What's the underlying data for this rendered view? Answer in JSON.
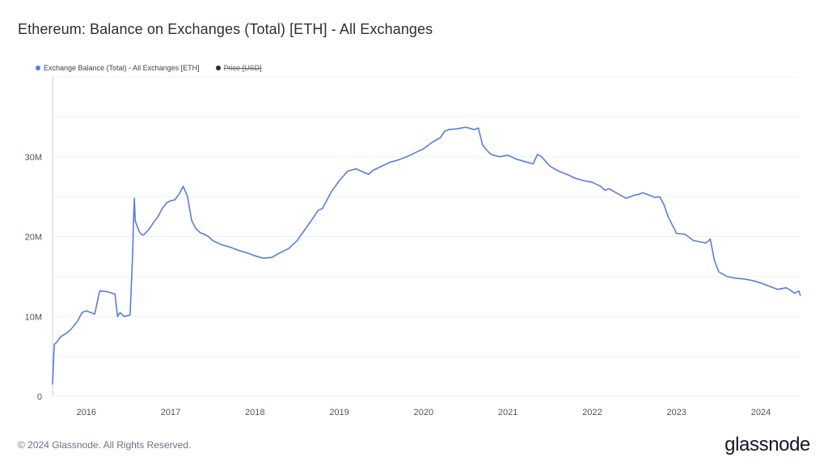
{
  "header": {
    "title": "Ethereum: Balance on Exchanges (Total) [ETH] - All Exchanges"
  },
  "legend": {
    "items": [
      {
        "label": "Exchange Balance (Total) - All Exchanges [ETH]",
        "color": "#5b7be0",
        "struck": false
      },
      {
        "label": "Price [USD]",
        "color": "#2b2b2b",
        "struck": true
      }
    ]
  },
  "footer": {
    "copyright": "© 2024 Glassnode. All Rights Reserved.",
    "brand": "glassnode"
  },
  "chart_data": {
    "type": "line",
    "xlabel": "",
    "ylabel": "",
    "x_ticks": [
      "2016",
      "2017",
      "2018",
      "2019",
      "2020",
      "2021",
      "2022",
      "2023",
      "2024"
    ],
    "y_ticks": [
      0,
      10000000,
      20000000,
      30000000
    ],
    "y_tick_labels": [
      "0",
      "10M",
      "20M",
      "30M"
    ],
    "xlim": [
      2015.6,
      2024.47
    ],
    "ylim": [
      0,
      40000000
    ],
    "grid": true,
    "legend_position": "top-left",
    "series": [
      {
        "name": "Exchange Balance (Total) - All Exchanges [ETH]",
        "color": "#5b7be0",
        "x": [
          2015.6,
          2015.62,
          2015.65,
          2015.7,
          2015.75,
          2015.8,
          2015.85,
          2015.9,
          2015.95,
          2016.0,
          2016.1,
          2016.15,
          2016.16,
          2016.25,
          2016.34,
          2016.37,
          2016.4,
          2016.45,
          2016.52,
          2016.55,
          2016.56,
          2016.57,
          2016.58,
          2016.62,
          2016.65,
          2016.68,
          2016.75,
          2016.8,
          2016.85,
          2016.9,
          2016.95,
          2017.0,
          2017.05,
          2017.1,
          2017.15,
          2017.2,
          2017.25,
          2017.3,
          2017.35,
          2017.4,
          2017.45,
          2017.5,
          2017.6,
          2017.7,
          2017.8,
          2017.9,
          2018.0,
          2018.1,
          2018.2,
          2018.3,
          2018.4,
          2018.5,
          2018.6,
          2018.7,
          2018.75,
          2018.8,
          2018.9,
          2019.0,
          2019.1,
          2019.2,
          2019.3,
          2019.35,
          2019.4,
          2019.5,
          2019.6,
          2019.7,
          2019.8,
          2019.9,
          2020.0,
          2020.1,
          2020.2,
          2020.25,
          2020.3,
          2020.4,
          2020.5,
          2020.6,
          2020.65,
          2020.7,
          2020.75,
          2020.8,
          2020.9,
          2021.0,
          2021.1,
          2021.2,
          2021.3,
          2021.35,
          2021.4,
          2021.5,
          2021.55,
          2021.6,
          2021.7,
          2021.8,
          2021.9,
          2022.0,
          2022.1,
          2022.15,
          2022.2,
          2022.3,
          2022.4,
          2022.5,
          2022.55,
          2022.6,
          2022.7,
          2022.75,
          2022.8,
          2022.85,
          2022.9,
          2023.0,
          2023.1,
          2023.2,
          2023.3,
          2023.35,
          2023.4,
          2023.45,
          2023.5,
          2023.6,
          2023.7,
          2023.8,
          2023.9,
          2024.0,
          2024.1,
          2024.2,
          2024.3,
          2024.35,
          2024.4,
          2024.45,
          2024.47
        ],
        "y": [
          1500000,
          6500000,
          6800000,
          7500000,
          7800000,
          8200000,
          8800000,
          9500000,
          10500000,
          10700000,
          10300000,
          12800000,
          13200000,
          13100000,
          12800000,
          10000000,
          10500000,
          10000000,
          10200000,
          18000000,
          22000000,
          24800000,
          22000000,
          20800000,
          20300000,
          20200000,
          21000000,
          21800000,
          22500000,
          23500000,
          24200000,
          24500000,
          24600000,
          25300000,
          26300000,
          25000000,
          22000000,
          21000000,
          20500000,
          20300000,
          20000000,
          19500000,
          19000000,
          18700000,
          18300000,
          18000000,
          17600000,
          17300000,
          17400000,
          18000000,
          18500000,
          19500000,
          21000000,
          22500000,
          23300000,
          23500000,
          25500000,
          27000000,
          28200000,
          28500000,
          28000000,
          27800000,
          28300000,
          28800000,
          29300000,
          29600000,
          30000000,
          30500000,
          31000000,
          31800000,
          32400000,
          33200000,
          33400000,
          33500000,
          33700000,
          33400000,
          33600000,
          31500000,
          30800000,
          30300000,
          30000000,
          30200000,
          29700000,
          29400000,
          29100000,
          30300000,
          30000000,
          28800000,
          28500000,
          28200000,
          27800000,
          27300000,
          27000000,
          26800000,
          26300000,
          25800000,
          26000000,
          25400000,
          24800000,
          25200000,
          25300000,
          25500000,
          25100000,
          24900000,
          25000000,
          24000000,
          22500000,
          20400000,
          20300000,
          19500000,
          19300000,
          19200000,
          19700000,
          17000000,
          15600000,
          15000000,
          14800000,
          14700000,
          14500000,
          14200000,
          13800000,
          13400000,
          13600000,
          13300000,
          12900000,
          13200000,
          12600000
        ]
      }
    ]
  }
}
